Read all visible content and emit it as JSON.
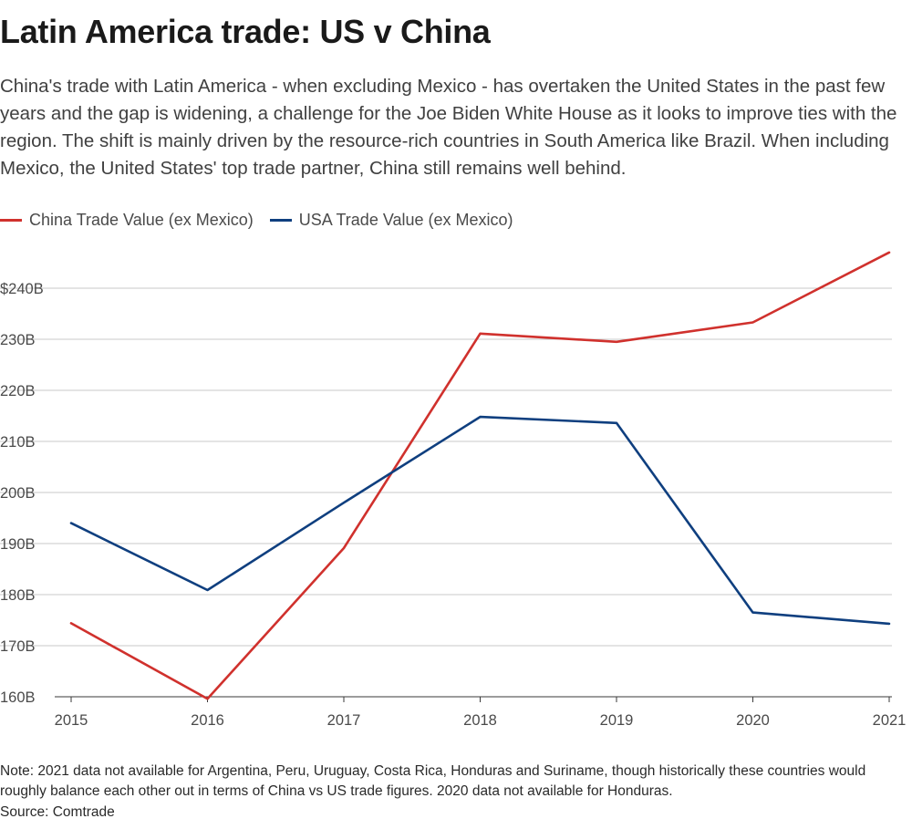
{
  "header": {
    "title": "Latin America trade: US v China",
    "subtitle": "China's trade with Latin America - when excluding Mexico - has overtaken the United States in the past few years and the gap is widening, a challenge for the Joe Biden White House as it looks to improve ties with the region. The shift is mainly driven by the resource-rich countries in South America like Brazil. When including Mexico, the United States' top trade partner, China still remains well behind."
  },
  "footer": {
    "note": "Note: 2021 data not available for Argentina, Peru, Uruguay, Costa Rica, Honduras and Suriname, though historically these countries would roughly balance each other out in terms of China vs US trade figures. 2020 data not available for Honduras.",
    "source": "Source: Comtrade"
  },
  "chart_data": {
    "type": "line",
    "title": "Latin America trade: US v China",
    "xlabel": "",
    "ylabel": "",
    "x": [
      2015,
      2016,
      2017,
      2018,
      2019,
      2020,
      2021
    ],
    "x_tick_labels": [
      "2015",
      "2016",
      "2017",
      "2018",
      "2019",
      "2020",
      "2021"
    ],
    "ylim": [
      160,
      248
    ],
    "y_ticks": [
      160,
      170,
      180,
      190,
      200,
      210,
      220,
      230,
      240
    ],
    "y_tick_labels": [
      "160B",
      "170B",
      "180B",
      "190B",
      "200B",
      "210B",
      "220B",
      "230B",
      "$240B"
    ],
    "grid": true,
    "legend_position": "top-left",
    "series": [
      {
        "name": "China Trade Value (ex Mexico)",
        "color": "#d0312d",
        "values": [
          174.4,
          159.6,
          189.1,
          231.1,
          229.5,
          233.3,
          247.0
        ]
      },
      {
        "name": "USA Trade Value (ex Mexico)",
        "color": "#0f3f7f",
        "values": [
          194.0,
          180.9,
          198.0,
          214.8,
          213.6,
          176.5,
          174.3
        ]
      }
    ]
  }
}
